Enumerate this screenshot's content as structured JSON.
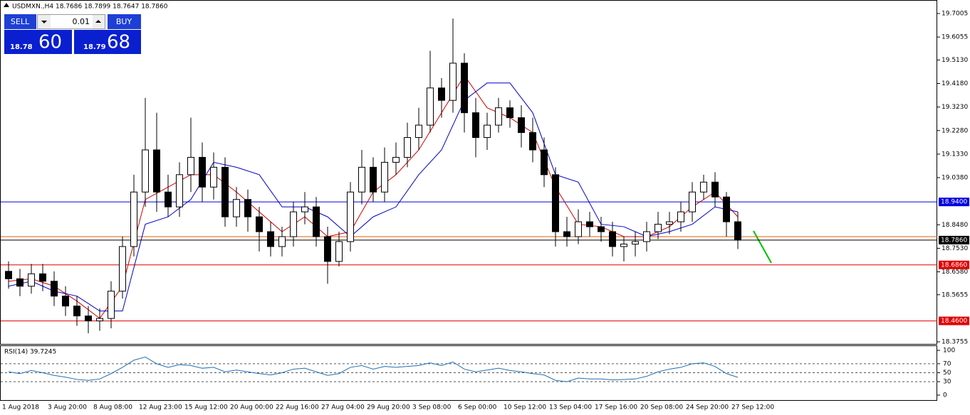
{
  "chart_data": {
    "type": "candlestick",
    "title": "USDMXN.,H4  18.7686 18.7899 18.7647 18.7860",
    "xlabels": [
      "1 Aug 2018",
      "3 Aug 20:00",
      "8 Aug 08:00",
      "12 Aug 23:00",
      "15 Aug 12:00",
      "20 Aug 00:00",
      "22 Aug 16:00",
      "27 Aug 04:00",
      "29 Aug 20:00",
      "3 Sep 08:00",
      "6 Sep 00:00",
      "10 Sep 12:00",
      "13 Sep 04:00",
      "17 Sep 16:00",
      "20 Sep 08:00",
      "24 Sep 20:00",
      "27 Sep 12:00"
    ],
    "open": [
      18.66,
      18.63,
      18.6,
      18.65,
      18.62,
      18.56,
      18.52,
      18.48,
      18.46,
      18.47,
      18.58,
      18.76,
      18.98,
      19.15,
      18.98,
      18.92,
      19.05,
      19.12,
      19.0,
      19.08,
      18.88,
      18.95,
      18.88,
      18.82,
      18.76,
      18.8,
      18.9,
      18.92,
      18.8,
      18.7,
      18.78,
      18.98,
      19.08,
      18.98,
      19.1,
      19.12,
      19.2,
      19.25,
      19.4,
      19.35,
      19.5,
      19.3,
      19.2,
      19.25,
      19.32,
      19.28,
      19.22,
      19.15,
      19.05,
      18.82,
      18.8,
      18.86,
      18.84,
      18.82,
      18.76,
      18.77,
      18.78,
      18.82,
      18.85,
      18.86,
      18.9,
      18.98,
      19.02,
      18.96,
      18.86
    ],
    "high": [
      18.7,
      18.67,
      18.69,
      18.69,
      18.66,
      18.6,
      18.56,
      18.52,
      18.51,
      18.62,
      18.8,
      19.05,
      19.36,
      19.3,
      19.05,
      19.1,
      19.28,
      19.18,
      19.14,
      19.12,
      19.0,
      18.99,
      18.92,
      18.86,
      18.84,
      18.94,
      18.98,
      18.96,
      18.84,
      18.82,
      19.02,
      19.15,
      19.12,
      19.16,
      19.18,
      19.26,
      19.32,
      19.55,
      19.44,
      19.68,
      19.54,
      19.36,
      19.3,
      19.36,
      19.35,
      19.33,
      19.28,
      19.2,
      19.08,
      18.88,
      18.91,
      18.9,
      18.88,
      18.86,
      18.8,
      18.82,
      18.86,
      18.9,
      18.9,
      18.94,
      19.02,
      19.05,
      19.06,
      18.98,
      18.9
    ],
    "low": [
      18.59,
      18.56,
      18.57,
      18.58,
      18.52,
      18.48,
      18.44,
      18.41,
      18.42,
      18.43,
      18.55,
      18.72,
      18.92,
      18.9,
      18.88,
      18.88,
      18.98,
      18.94,
      18.95,
      18.84,
      18.84,
      18.82,
      18.74,
      18.72,
      18.72,
      18.76,
      18.85,
      18.76,
      18.61,
      18.68,
      18.74,
      18.93,
      18.94,
      18.94,
      19.05,
      19.08,
      19.15,
      19.22,
      19.28,
      19.3,
      19.22,
      19.12,
      19.15,
      19.22,
      19.24,
      19.16,
      19.1,
      19.0,
      18.76,
      18.76,
      18.77,
      18.8,
      18.78,
      18.72,
      18.7,
      18.72,
      18.74,
      18.79,
      18.81,
      18.82,
      18.86,
      18.95,
      18.92,
      18.8,
      18.75
    ],
    "close": [
      18.63,
      18.6,
      18.65,
      18.62,
      18.56,
      18.52,
      18.48,
      18.46,
      18.47,
      18.58,
      18.76,
      18.98,
      19.15,
      18.98,
      18.92,
      19.05,
      19.12,
      19.0,
      19.08,
      18.88,
      18.95,
      18.88,
      18.82,
      18.76,
      18.8,
      18.9,
      18.92,
      18.8,
      18.7,
      18.78,
      18.98,
      19.08,
      18.98,
      19.1,
      19.12,
      19.2,
      19.25,
      19.4,
      19.35,
      19.5,
      19.3,
      19.2,
      19.25,
      19.32,
      19.28,
      19.22,
      19.15,
      19.05,
      18.82,
      18.8,
      18.86,
      18.84,
      18.82,
      18.76,
      18.77,
      18.78,
      18.82,
      18.85,
      18.86,
      18.9,
      18.98,
      19.02,
      18.96,
      18.86,
      18.786
    ],
    "lines": [
      {
        "color": "#d00000",
        "values": [
          18.62,
          18.63,
          18.6,
          18.54,
          18.47,
          18.6,
          18.95,
          19.0,
          19.05,
          19.05,
          18.98,
          18.9,
          18.82,
          18.88,
          18.8,
          18.82,
          18.98,
          19.05,
          19.15,
          19.3,
          19.45,
          19.32,
          19.28,
          19.22,
          19.0,
          18.85,
          18.84,
          18.8,
          18.8,
          18.84,
          18.92,
          18.98,
          18.88
        ]
      },
      {
        "color": "#0000c8",
        "values": [
          18.6,
          18.62,
          18.58,
          18.56,
          18.5,
          18.5,
          18.85,
          18.88,
          18.95,
          19.1,
          19.08,
          19.05,
          18.92,
          18.92,
          18.88,
          18.8,
          18.88,
          18.92,
          19.05,
          19.15,
          19.35,
          19.42,
          19.42,
          19.3,
          19.05,
          19.02,
          18.85,
          18.84,
          18.8,
          18.82,
          18.85,
          18.92,
          18.9
        ]
      }
    ],
    "ylim": [
      18.367,
      19.732
    ],
    "yticks": [
      19.7005,
      19.6055,
      {
        "value": 19.513,
        "label": "19.5130"
      },
      {
        "value": 19.418,
        "label": "19.4180"
      },
      {
        "value": 19.323,
        "label": "19.3230"
      },
      {
        "value": 19.228,
        "label": "19.2280"
      },
      {
        "value": 19.133,
        "label": "19.1330"
      },
      {
        "value": 19.038,
        "label": "19.0380"
      },
      {
        "value": 18.848,
        "label": "18.8480"
      },
      {
        "value": 18.753,
        "label": "18.7530"
      },
      {
        "value": 18.658,
        "label": "18.6580"
      },
      18.5655,
      18.3755
    ],
    "hlines": [
      {
        "value": 18.8,
        "color": "#e06000"
      },
      {
        "value": 18.94,
        "label": "18.9400",
        "color": "#0000e0"
      },
      {
        "value": 18.786,
        "label": "18.7860",
        "color": "#000000"
      },
      {
        "value": 18.686,
        "label": "18.6860",
        "color": "#e00000"
      },
      {
        "value": 18.46,
        "label": "18.4600",
        "color": "#e00000"
      }
    ],
    "rsi": {
      "title": "RSI(14) 39.7245",
      "color": "#1f6fb4",
      "values": [
        52,
        48,
        55,
        50,
        44,
        40,
        35,
        33,
        36,
        48,
        62,
        78,
        85,
        70,
        62,
        68,
        66,
        60,
        62,
        52,
        56,
        52,
        48,
        45,
        50,
        58,
        60,
        52,
        44,
        48,
        62,
        66,
        58,
        64,
        62,
        64,
        66,
        72,
        66,
        74,
        58,
        52,
        56,
        60,
        55,
        52,
        48,
        45,
        33,
        30,
        38,
        36,
        36,
        34,
        35,
        36,
        42,
        52,
        58,
        62,
        70,
        72,
        64,
        48,
        39.7245
      ],
      "ylim": [
        -12.7,
        107.9
      ],
      "yticks": [
        0,
        30,
        50,
        70,
        100
      ],
      "levels": [
        30,
        50,
        70
      ]
    },
    "trade_panel": {
      "sell": "SELL",
      "buy": "BUY",
      "lot": "0.01",
      "sell_small": "18.78",
      "sell_big": "60",
      "buy_small": "18.79",
      "buy_big": "68"
    }
  }
}
